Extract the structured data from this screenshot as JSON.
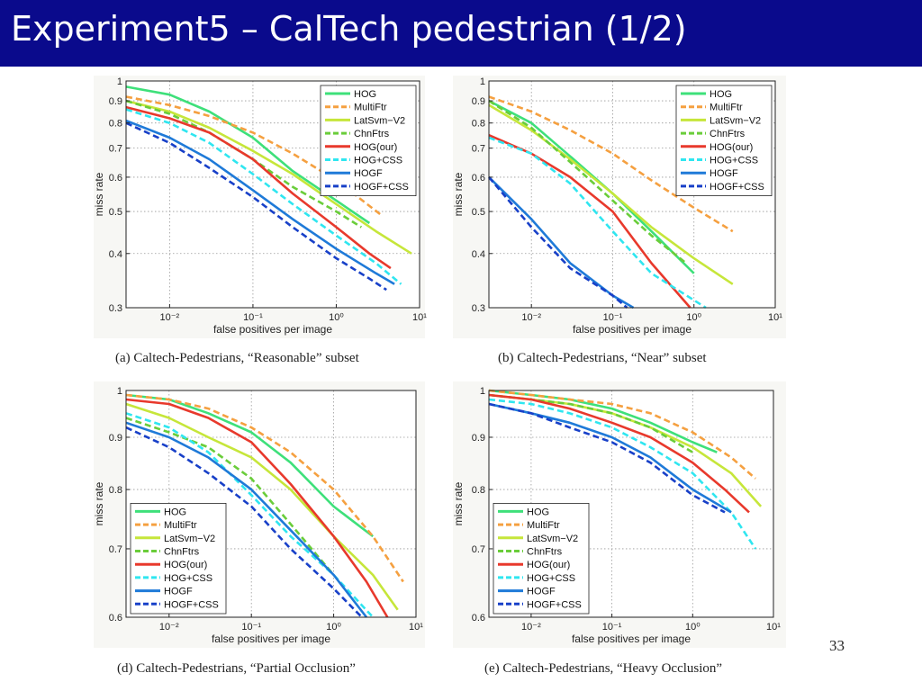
{
  "slide": {
    "title": "Experiment5 – CalTech pedestrian (1/2)",
    "page_number": "33"
  },
  "legend_series": [
    {
      "name": "HOG",
      "color": "#3ee07a",
      "dash": "solid"
    },
    {
      "name": "MultiFtr",
      "color": "#f5a040",
      "dash": "dashed"
    },
    {
      "name": "LatSvm−V2",
      "color": "#c6e63a",
      "dash": "solid"
    },
    {
      "name": "ChnFtrs",
      "color": "#6acd3a",
      "dash": "dashed"
    },
    {
      "name": "HOG(our)",
      "color": "#e8392c",
      "dash": "solid"
    },
    {
      "name": "HOG+CSS",
      "color": "#2fe6f0",
      "dash": "dashed"
    },
    {
      "name": "HOGF",
      "color": "#1f7ad8",
      "dash": "solid"
    },
    {
      "name": "HOGF+CSS",
      "color": "#1840c8",
      "dash": "dashed"
    }
  ],
  "chart_data": [
    {
      "type": "line",
      "caption": "(a)  Caltech-Pedestrians, “Reasonable” subset",
      "xlabel": "false positives per image",
      "ylabel": "miss rate",
      "xscale": "log",
      "yscale": "log",
      "xlim": [
        0.003,
        10
      ],
      "ylim": [
        0.3,
        1
      ],
      "xticks": [
        {
          "v": 0.01,
          "label": "10⁻²"
        },
        {
          "v": 0.1,
          "label": "10⁻¹"
        },
        {
          "v": 1,
          "label": "10⁰"
        },
        {
          "v": 10,
          "label": "10¹"
        }
      ],
      "yticks": [
        {
          "v": 0.3,
          "label": "0.3"
        },
        {
          "v": 0.4,
          "label": "0.4"
        },
        {
          "v": 0.5,
          "label": "0.5"
        },
        {
          "v": 0.6,
          "label": "0.6"
        },
        {
          "v": 0.7,
          "label": "0.7"
        },
        {
          "v": 0.8,
          "label": "0.8"
        },
        {
          "v": 0.9,
          "label": "0.9"
        },
        {
          "v": 1,
          "label": "1"
        }
      ],
      "grid": true,
      "legend": "top-right",
      "series": [
        {
          "name": "HOG",
          "x": [
            0.003,
            0.01,
            0.03,
            0.1,
            0.3,
            1,
            2.5
          ],
          "y": [
            0.97,
            0.93,
            0.85,
            0.74,
            0.62,
            0.53,
            0.47
          ]
        },
        {
          "name": "MultiFtr",
          "x": [
            0.003,
            0.01,
            0.03,
            0.1,
            0.3,
            1,
            3.5
          ],
          "y": [
            0.92,
            0.88,
            0.83,
            0.76,
            0.68,
            0.59,
            0.49
          ]
        },
        {
          "name": "LatSvm−V2",
          "x": [
            0.003,
            0.01,
            0.03,
            0.1,
            0.3,
            1,
            3,
            8
          ],
          "y": [
            0.9,
            0.85,
            0.78,
            0.69,
            0.61,
            0.52,
            0.45,
            0.4
          ]
        },
        {
          "name": "ChnFtrs",
          "x": [
            0.003,
            0.01,
            0.03,
            0.1,
            0.3,
            1,
            2
          ],
          "y": [
            0.9,
            0.84,
            0.76,
            0.66,
            0.57,
            0.5,
            0.46
          ]
        },
        {
          "name": "HOG(our)",
          "x": [
            0.003,
            0.01,
            0.03,
            0.1,
            0.3,
            1,
            2.5,
            4.5
          ],
          "y": [
            0.87,
            0.82,
            0.76,
            0.66,
            0.55,
            0.46,
            0.4,
            0.37
          ]
        },
        {
          "name": "HOG+CSS",
          "x": [
            0.003,
            0.01,
            0.03,
            0.1,
            0.3,
            1,
            3,
            6
          ],
          "y": [
            0.86,
            0.8,
            0.72,
            0.61,
            0.52,
            0.44,
            0.38,
            0.34
          ]
        },
        {
          "name": "HOGF",
          "x": [
            0.003,
            0.01,
            0.03,
            0.1,
            0.3,
            1,
            3,
            5
          ],
          "y": [
            0.81,
            0.74,
            0.66,
            0.56,
            0.48,
            0.41,
            0.36,
            0.34
          ]
        },
        {
          "name": "HOGF+CSS",
          "x": [
            0.003,
            0.01,
            0.03,
            0.1,
            0.3,
            1,
            2.5,
            4
          ],
          "y": [
            0.8,
            0.72,
            0.63,
            0.54,
            0.46,
            0.39,
            0.35,
            0.33
          ]
        }
      ]
    },
    {
      "type": "line",
      "caption": "(b)  Caltech-Pedestrians, “Near” subset",
      "xlabel": "false positives per image",
      "ylabel": "miss rate",
      "xscale": "log",
      "yscale": "log",
      "xlim": [
        0.003,
        10
      ],
      "ylim": [
        0.3,
        1
      ],
      "xticks": [
        {
          "v": 0.01,
          "label": "10⁻²"
        },
        {
          "v": 0.1,
          "label": "10⁻¹"
        },
        {
          "v": 1,
          "label": "10⁰"
        },
        {
          "v": 10,
          "label": "10¹"
        }
      ],
      "yticks": [
        {
          "v": 0.3,
          "label": "0.3"
        },
        {
          "v": 0.4,
          "label": "0.4"
        },
        {
          "v": 0.5,
          "label": "0.5"
        },
        {
          "v": 0.6,
          "label": "0.6"
        },
        {
          "v": 0.7,
          "label": "0.7"
        },
        {
          "v": 0.8,
          "label": "0.8"
        },
        {
          "v": 0.9,
          "label": "0.9"
        },
        {
          "v": 1,
          "label": "1"
        }
      ],
      "grid": true,
      "legend": "top-right",
      "series": [
        {
          "name": "HOG",
          "x": [
            0.003,
            0.01,
            0.03,
            0.1,
            0.3,
            1
          ],
          "y": [
            0.9,
            0.8,
            0.67,
            0.55,
            0.45,
            0.36
          ]
        },
        {
          "name": "MultiFtr",
          "x": [
            0.003,
            0.01,
            0.03,
            0.1,
            0.3,
            1,
            3
          ],
          "y": [
            0.92,
            0.85,
            0.77,
            0.68,
            0.59,
            0.51,
            0.45
          ]
        },
        {
          "name": "LatSvm−V2",
          "x": [
            0.003,
            0.01,
            0.03,
            0.1,
            0.3,
            1,
            3
          ],
          "y": [
            0.88,
            0.77,
            0.66,
            0.55,
            0.46,
            0.39,
            0.34
          ]
        },
        {
          "name": "ChnFtrs",
          "x": [
            0.003,
            0.01,
            0.03,
            0.1,
            0.3,
            0.8
          ],
          "y": [
            0.9,
            0.78,
            0.65,
            0.53,
            0.44,
            0.38
          ]
        },
        {
          "name": "HOG(our)",
          "x": [
            0.003,
            0.01,
            0.03,
            0.1,
            0.3,
            0.9
          ],
          "y": [
            0.75,
            0.68,
            0.6,
            0.5,
            0.38,
            0.3
          ]
        },
        {
          "name": "HOG+CSS",
          "x": [
            0.003,
            0.01,
            0.03,
            0.1,
            0.3,
            1.4
          ],
          "y": [
            0.74,
            0.68,
            0.58,
            0.45,
            0.36,
            0.3
          ]
        },
        {
          "name": "HOGF",
          "x": [
            0.003,
            0.01,
            0.03,
            0.1,
            0.18
          ],
          "y": [
            0.6,
            0.48,
            0.38,
            0.32,
            0.3
          ]
        },
        {
          "name": "HOGF+CSS",
          "x": [
            0.003,
            0.01,
            0.03,
            0.1,
            0.15
          ],
          "y": [
            0.6,
            0.46,
            0.37,
            0.32,
            0.3
          ]
        }
      ]
    },
    {
      "type": "line",
      "caption": "(d)  Caltech-Pedestrians, “Partial Occlusion”",
      "xlabel": "false positives per image",
      "ylabel": "miss rate",
      "xscale": "log",
      "yscale": "log",
      "xlim": [
        0.003,
        10
      ],
      "ylim": [
        0.6,
        1
      ],
      "xticks": [
        {
          "v": 0.01,
          "label": "10⁻²"
        },
        {
          "v": 0.1,
          "label": "10⁻¹"
        },
        {
          "v": 1,
          "label": "10⁰"
        },
        {
          "v": 10,
          "label": "10¹"
        }
      ],
      "yticks": [
        {
          "v": 0.6,
          "label": "0.6"
        },
        {
          "v": 0.7,
          "label": "0.7"
        },
        {
          "v": 0.8,
          "label": "0.8"
        },
        {
          "v": 0.9,
          "label": "0.9"
        },
        {
          "v": 1,
          "label": "1"
        }
      ],
      "grid": true,
      "legend": "bottom-left",
      "series": [
        {
          "name": "HOG",
          "x": [
            0.003,
            0.01,
            0.03,
            0.1,
            0.3,
            1,
            3
          ],
          "y": [
            0.99,
            0.98,
            0.95,
            0.91,
            0.85,
            0.77,
            0.72
          ]
        },
        {
          "name": "MultiFtr",
          "x": [
            0.003,
            0.01,
            0.03,
            0.1,
            0.3,
            1,
            3,
            7
          ],
          "y": [
            0.99,
            0.98,
            0.96,
            0.92,
            0.87,
            0.8,
            0.72,
            0.65
          ]
        },
        {
          "name": "LatSvm−V2",
          "x": [
            0.003,
            0.01,
            0.03,
            0.1,
            0.3,
            1,
            3,
            6
          ],
          "y": [
            0.97,
            0.94,
            0.9,
            0.86,
            0.8,
            0.72,
            0.66,
            0.61
          ]
        },
        {
          "name": "ChnFtrs",
          "x": [
            0.003,
            0.01,
            0.03,
            0.1,
            0.3,
            1
          ],
          "y": [
            0.94,
            0.91,
            0.88,
            0.82,
            0.74,
            0.66
          ]
        },
        {
          "name": "HOG(our)",
          "x": [
            0.003,
            0.01,
            0.03,
            0.1,
            0.3,
            1,
            2.5,
            4.5
          ],
          "y": [
            0.98,
            0.97,
            0.94,
            0.89,
            0.81,
            0.72,
            0.65,
            0.6
          ]
        },
        {
          "name": "HOG+CSS",
          "x": [
            0.003,
            0.01,
            0.03,
            0.1,
            0.3,
            1,
            3
          ],
          "y": [
            0.95,
            0.92,
            0.87,
            0.79,
            0.72,
            0.66,
            0.6
          ]
        },
        {
          "name": "HOGF",
          "x": [
            0.003,
            0.01,
            0.03,
            0.1,
            0.3,
            1,
            2.5
          ],
          "y": [
            0.93,
            0.9,
            0.86,
            0.8,
            0.73,
            0.66,
            0.6
          ]
        },
        {
          "name": "HOGF+CSS",
          "x": [
            0.003,
            0.01,
            0.03,
            0.1,
            0.3,
            1,
            2.2
          ],
          "y": [
            0.92,
            0.88,
            0.83,
            0.77,
            0.7,
            0.64,
            0.6
          ]
        }
      ]
    },
    {
      "type": "line",
      "caption": "(e)  Caltech-Pedestrians, “Heavy Occlusion”",
      "xlabel": "false positives per image",
      "ylabel": "miss rate",
      "xscale": "log",
      "yscale": "log",
      "xlim": [
        0.003,
        10
      ],
      "ylim": [
        0.6,
        1
      ],
      "xticks": [
        {
          "v": 0.01,
          "label": "10⁻²"
        },
        {
          "v": 0.1,
          "label": "10⁻¹"
        },
        {
          "v": 1,
          "label": "10⁰"
        },
        {
          "v": 10,
          "label": "10¹"
        }
      ],
      "yticks": [
        {
          "v": 0.6,
          "label": "0.6"
        },
        {
          "v": 0.7,
          "label": "0.7"
        },
        {
          "v": 0.8,
          "label": "0.8"
        },
        {
          "v": 0.9,
          "label": "0.9"
        },
        {
          "v": 1,
          "label": "1"
        }
      ],
      "grid": true,
      "legend": "bottom-left",
      "series": [
        {
          "name": "HOG",
          "x": [
            0.003,
            0.01,
            0.03,
            0.1,
            0.3,
            1,
            2
          ],
          "y": [
            1.0,
            0.99,
            0.98,
            0.96,
            0.93,
            0.89,
            0.87
          ]
        },
        {
          "name": "MultiFtr",
          "x": [
            0.003,
            0.01,
            0.03,
            0.1,
            0.3,
            1,
            3,
            6
          ],
          "y": [
            1.0,
            0.99,
            0.98,
            0.97,
            0.95,
            0.91,
            0.86,
            0.82
          ]
        },
        {
          "name": "LatSvm−V2",
          "x": [
            0.003,
            0.01,
            0.03,
            0.1,
            0.3,
            1,
            3,
            7
          ],
          "y": [
            0.99,
            0.98,
            0.97,
            0.95,
            0.92,
            0.88,
            0.83,
            0.77
          ]
        },
        {
          "name": "ChnFtrs",
          "x": [
            0.003,
            0.01,
            0.03,
            0.1,
            0.3,
            1
          ],
          "y": [
            0.99,
            0.98,
            0.97,
            0.95,
            0.92,
            0.87
          ]
        },
        {
          "name": "HOG(our)",
          "x": [
            0.003,
            0.01,
            0.03,
            0.1,
            0.3,
            1,
            2.5,
            5
          ],
          "y": [
            0.99,
            0.98,
            0.96,
            0.93,
            0.9,
            0.85,
            0.8,
            0.76
          ]
        },
        {
          "name": "HOG+CSS",
          "x": [
            0.003,
            0.01,
            0.03,
            0.1,
            0.3,
            1,
            3,
            6
          ],
          "y": [
            0.98,
            0.97,
            0.95,
            0.92,
            0.88,
            0.83,
            0.76,
            0.7
          ]
        },
        {
          "name": "HOGF",
          "x": [
            0.003,
            0.01,
            0.03,
            0.1,
            0.3,
            1,
            3
          ],
          "y": [
            0.97,
            0.95,
            0.93,
            0.9,
            0.86,
            0.8,
            0.76
          ]
        },
        {
          "name": "HOGF+CSS",
          "x": [
            0.003,
            0.01,
            0.03,
            0.1,
            0.3,
            1,
            2.5
          ],
          "y": [
            0.97,
            0.95,
            0.92,
            0.89,
            0.85,
            0.79,
            0.76
          ]
        }
      ]
    }
  ]
}
